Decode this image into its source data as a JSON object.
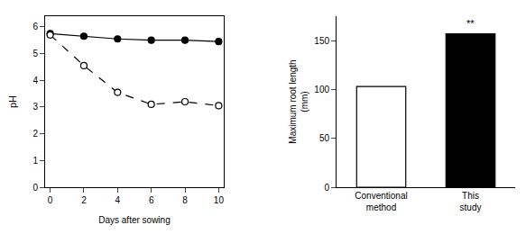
{
  "chart_data": [
    {
      "type": "line",
      "xlabel": "Days after sowing",
      "ylabel": "pH",
      "xlim": [
        -0.3,
        10.3
      ],
      "ylim": [
        0,
        6.4
      ],
      "xticks": [
        0,
        2,
        4,
        6,
        8,
        10
      ],
      "yticks": [
        0,
        1,
        2,
        3,
        4,
        5,
        6
      ],
      "x": [
        0,
        2,
        4,
        6,
        8,
        10
      ],
      "series": [
        {
          "color": "black",
          "line_style": "solid",
          "marker": "circle",
          "values": [
            5.75,
            5.65,
            5.55,
            5.5,
            5.5,
            5.45
          ]
        },
        {
          "color": "black",
          "line_style": "dashed",
          "marker": "circle-open",
          "values": [
            5.7,
            4.55,
            3.55,
            3.1,
            3.2,
            3.05
          ]
        }
      ]
    },
    {
      "type": "bar",
      "ylabel": "Maximum root length\n(mm)",
      "categories": [
        "Conventional\nmethod",
        "This\nstudy"
      ],
      "values": [
        103,
        157
      ],
      "colors": [
        "white",
        "black"
      ],
      "ylim": [
        0,
        175
      ],
      "yticks": [
        0,
        50,
        100,
        150
      ],
      "annotations": [
        {
          "text": "**",
          "x": 1,
          "y": 160
        }
      ]
    }
  ]
}
